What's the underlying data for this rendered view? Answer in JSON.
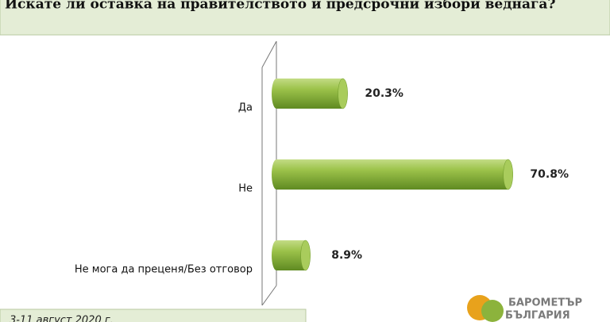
{
  "chart_data": {
    "type": "bar",
    "orientation": "horizontal",
    "title": "Искате ли оставка на правителството и предсрочни избори веднага?",
    "categories": [
      "Да",
      "Не",
      "Не мога да преценя/Без отговор"
    ],
    "values": [
      20.3,
      70.8,
      8.9
    ],
    "value_labels": [
      "20.3%",
      "70.8%",
      "8.9%"
    ],
    "color": "#8cb33c",
    "note": "3-11 август 2020 г.",
    "logo": [
      "БАРОМЕТЪР",
      "БЪЛГАРИЯ"
    ]
  }
}
